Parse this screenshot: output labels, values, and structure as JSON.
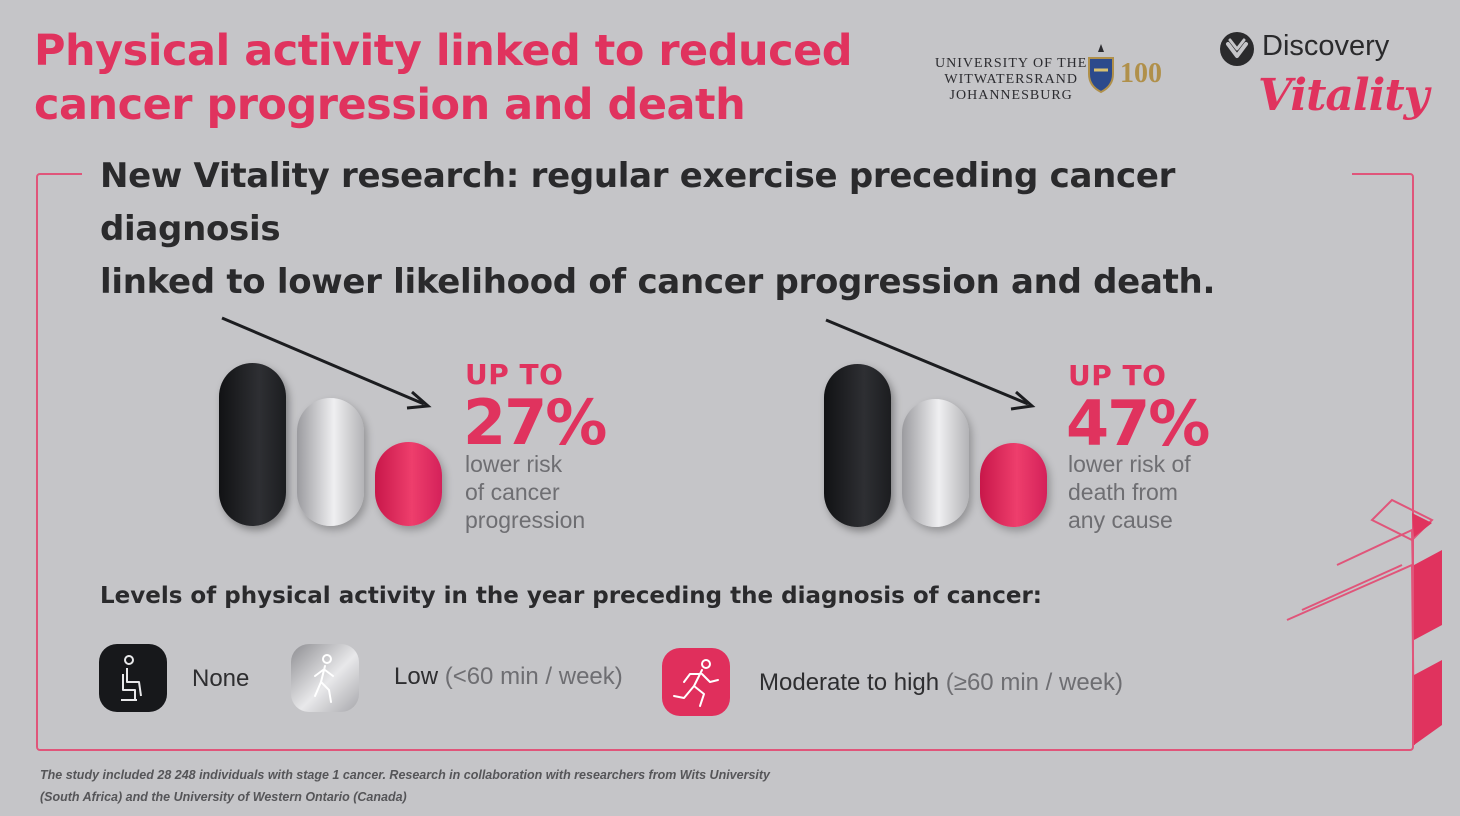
{
  "title": {
    "line1": "Physical activity linked to reduced",
    "line2": "cancer progression and death"
  },
  "logos": {
    "wits_line1": "UNIVERSITY OF THE",
    "wits_line2": "WITWATERSRAND",
    "wits_line3": "JOHANNESBURG",
    "centenary": "100",
    "discovery": "Discovery",
    "vitality": "Vitality"
  },
  "subtitle": {
    "line1": "New Vitality research: regular exercise preceding cancer diagnosis",
    "line2": "linked to lower likelihood of cancer progression and death."
  },
  "stats": [
    {
      "prefix": "UP TO",
      "value": "27%",
      "desc": [
        "lower risk",
        "of cancer",
        "progression"
      ]
    },
    {
      "prefix": "UP TO",
      "value": "47%",
      "desc": [
        "lower risk of",
        "death from",
        "any cause"
      ]
    }
  ],
  "levels_label": "Levels of physical activity in the year preceding the diagnosis of cancer:",
  "legend": [
    {
      "label": "None",
      "detail": ""
    },
    {
      "label": "Low",
      "detail": "(<60 min / week)"
    },
    {
      "label": "Moderate to high",
      "detail": "(≥60 min / week)"
    }
  ],
  "footnote": {
    "line1": "The study included 28 248 individuals with stage 1 cancer. Research in collaboration with researchers from Wits University",
    "line2": "(South Africa) and the University of Western Ontario (Canada)"
  },
  "colors": {
    "accent": "#e0335e",
    "background": "#c5c5c8",
    "dark": "#1c1d20",
    "text": "#2a2a2c"
  },
  "icons": [
    "person-seated-icon",
    "person-walking-icon",
    "person-running-icon",
    "trend-down-arrow-icon",
    "discovery-shield-icon",
    "wits-crest-icon"
  ]
}
